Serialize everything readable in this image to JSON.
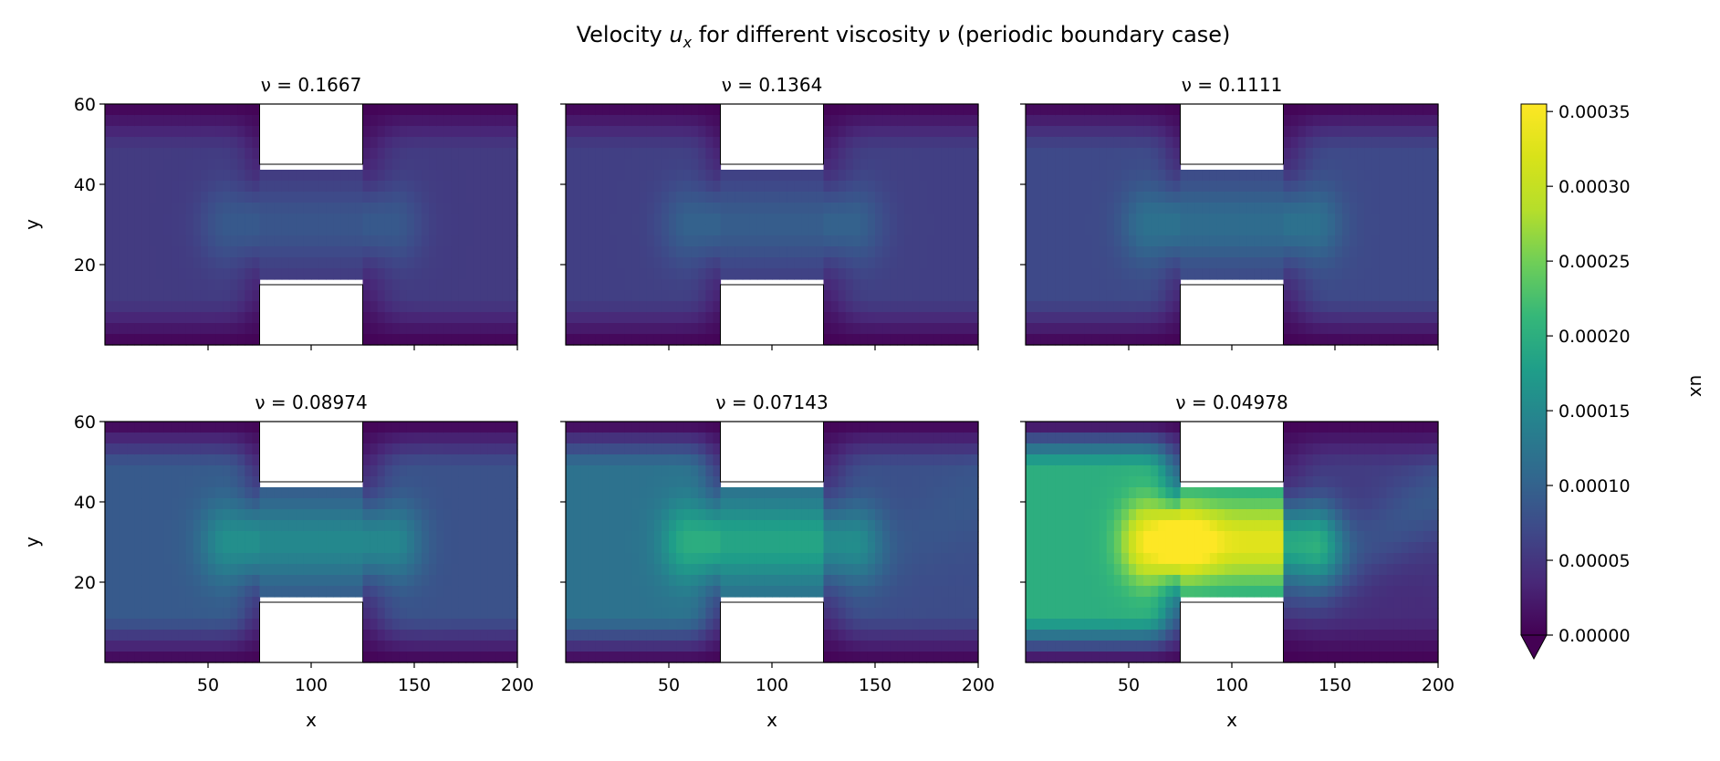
{
  "chart_data": {
    "type": "heatmap",
    "title": "Velocity u_x for different viscosity ν (periodic boundary case)",
    "title_parts": [
      "Velocity ",
      "u",
      "x",
      " for different viscosity ",
      "ν",
      " (periodic boundary case)"
    ],
    "xlabel": "x",
    "ylabel": "y",
    "colorbar_label": "ux",
    "colormap": "viridis",
    "colorbar_extend": "min",
    "clim": [
      0,
      0.000355
    ],
    "colorbar_ticks": [
      "0.00000",
      "0.00005",
      "0.00010",
      "0.00015",
      "0.00020",
      "0.00025",
      "0.00030",
      "0.00035"
    ],
    "colorbar_tick_values": [
      0,
      5e-05,
      0.0001,
      0.00015,
      0.0002,
      0.00025,
      0.0003,
      0.00035
    ],
    "xlim": [
      0,
      200
    ],
    "ylim": [
      0,
      60
    ],
    "x_ticks": [
      "50",
      "100",
      "150",
      "200"
    ],
    "x_tick_values": [
      50,
      100,
      150,
      200
    ],
    "y_ticks": [
      "20",
      "40",
      "60"
    ],
    "y_tick_values": [
      20,
      40,
      60
    ],
    "obstacles": [
      {
        "x": [
          75,
          125
        ],
        "y": [
          0,
          15
        ]
      },
      {
        "x": [
          75,
          125
        ],
        "y": [
          45,
          60
        ]
      }
    ],
    "panels": [
      {
        "nu_label": "ν = 0.1667",
        "nu": 0.1667,
        "left_mean": 5.5e-05,
        "channel_peak": 9e-05,
        "right_mean": 5.5e-05,
        "asymmetry": 0.0
      },
      {
        "nu_label": "ν = 0.1364",
        "nu": 0.1364,
        "left_mean": 6e-05,
        "channel_peak": 0.0001,
        "right_mean": 6e-05,
        "asymmetry": 0.0
      },
      {
        "nu_label": "ν = 0.1111",
        "nu": 0.1111,
        "left_mean": 7e-05,
        "channel_peak": 0.00012,
        "right_mean": 7e-05,
        "asymmetry": 0.0
      },
      {
        "nu_label": "ν = 0.08974",
        "nu": 0.08974,
        "left_mean": 9e-05,
        "channel_peak": 0.00016,
        "right_mean": 8e-05,
        "asymmetry": 0.0
      },
      {
        "nu_label": "ν = 0.07143",
        "nu": 0.07143,
        "left_mean": 0.00012,
        "channel_peak": 0.0002,
        "right_mean": 9e-05,
        "asymmetry": 0.3
      },
      {
        "nu_label": "ν = 0.04978",
        "nu": 0.04978,
        "left_mean": 0.0002,
        "channel_peak": 0.00035,
        "right_mean": 0.0001,
        "asymmetry": 1.0
      }
    ]
  }
}
